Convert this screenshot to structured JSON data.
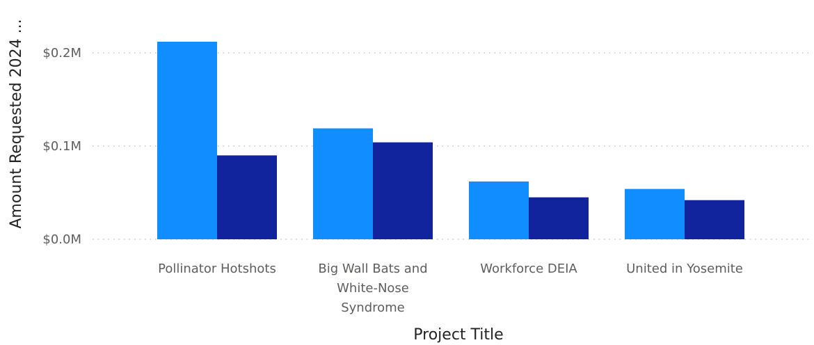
{
  "chart_data": {
    "type": "bar",
    "title": "",
    "xlabel": "Project Title",
    "ylabel": "Amount Requested 2024 ...",
    "categories": [
      [
        "Pollinator Hotshots"
      ],
      [
        "Big Wall Bats and",
        "White-Nose",
        "Syndrome"
      ],
      [
        "Workforce DEIA"
      ],
      [
        "United in Yosemite"
      ]
    ],
    "series": [
      {
        "values": [
          0.212,
          0.119,
          0.062,
          0.054
        ],
        "color": "#118DFF"
      },
      {
        "values": [
          0.09,
          0.104,
          0.045,
          0.042
        ],
        "color": "#12239E"
      }
    ],
    "yticks": [
      {
        "value": 0.0,
        "label": "$0.0M"
      },
      {
        "value": 0.1,
        "label": "$0.1M"
      },
      {
        "value": 0.2,
        "label": "$0.2M"
      }
    ],
    "ylim": [
      0,
      0.2
    ],
    "grid": true,
    "legend": "none"
  }
}
